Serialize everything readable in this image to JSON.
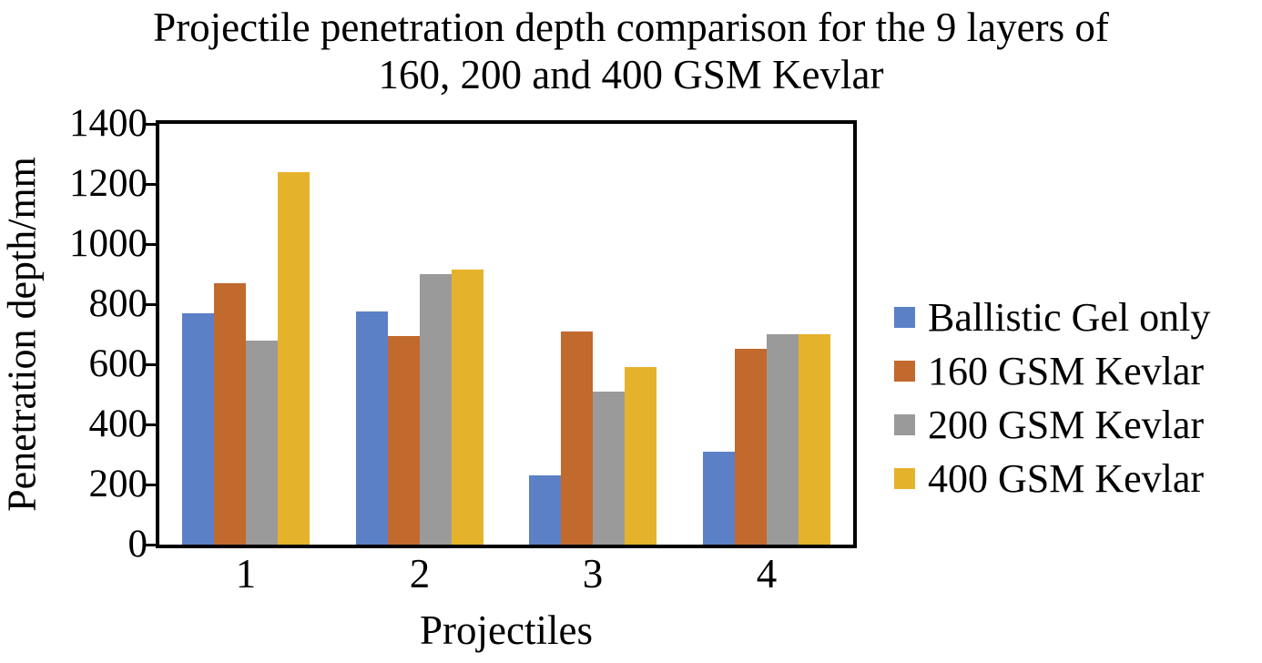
{
  "title": {
    "lines": [
      "Projectile penetration depth comparison for the 9 layers of",
      "160, 200 and 400 GSM Kevlar"
    ]
  },
  "chart_data": {
    "type": "bar",
    "title": "Projectile penetration depth comparison for the 9 layers of 160, 200 and 400 GSM Kevlar",
    "xlabel": "Projectiles",
    "ylabel": "Penetration depth/mm",
    "categories": [
      "1",
      "2",
      "3",
      "4"
    ],
    "series": [
      {
        "name": "Ballistic Gel only",
        "color": "#5B80C6",
        "values": [
          770,
          775,
          230,
          310
        ]
      },
      {
        "name": "160 GSM Kevlar",
        "color": "#C2692E",
        "values": [
          870,
          695,
          710,
          650
        ]
      },
      {
        "name": "200 GSM Kevlar",
        "color": "#9A9A9A",
        "values": [
          680,
          900,
          510,
          700
        ]
      },
      {
        "name": "400 GSM Kevlar",
        "color": "#E5B32B",
        "values": [
          1240,
          915,
          590,
          700
        ]
      }
    ],
    "ylim": [
      0,
      1400
    ],
    "ytick_step": 200,
    "yticks": [
      0,
      200,
      400,
      600,
      800,
      1000,
      1200,
      1400
    ],
    "grid": false,
    "legend_position": "right",
    "axis_color": "#000000"
  }
}
